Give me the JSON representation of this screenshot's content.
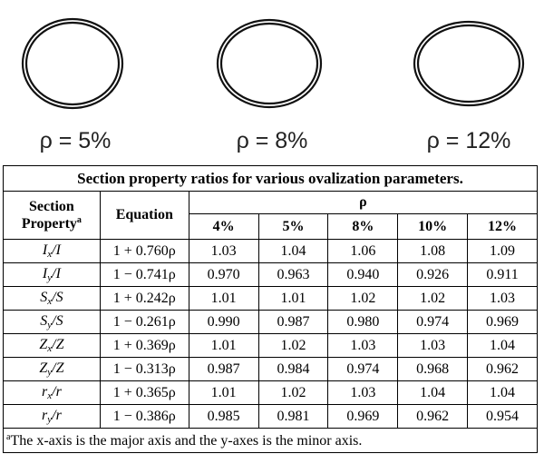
{
  "figure": {
    "ellipses": [
      {
        "label": "ρ = 5%"
      },
      {
        "label": "ρ = 8%"
      },
      {
        "label": "ρ = 12%"
      }
    ]
  },
  "table": {
    "caption": "Section property ratios for various ovalization parameters.",
    "headers": {
      "section_property": "Section",
      "section_property_line2": "Property",
      "section_property_sup": "a",
      "equation": "Equation",
      "rho": "ρ",
      "columns": [
        "4%",
        "5%",
        "8%",
        "10%",
        "12%"
      ]
    },
    "rows": [
      {
        "prop": "I",
        "sub": "x",
        "denom": "/I",
        "equation": "1 + 0.760ρ",
        "values": [
          "1.03",
          "1.04",
          "1.06",
          "1.08",
          "1.09"
        ]
      },
      {
        "prop": "I",
        "sub": "y",
        "denom": "/I",
        "equation": "1 − 0.741ρ",
        "values": [
          "0.970",
          "0.963",
          "0.940",
          "0.926",
          "0.911"
        ]
      },
      {
        "prop": "S",
        "sub": "x",
        "denom": "/S",
        "equation": "1 + 0.242ρ",
        "values": [
          "1.01",
          "1.01",
          "1.02",
          "1.02",
          "1.03"
        ]
      },
      {
        "prop": "S",
        "sub": "y",
        "denom": "/S",
        "equation": "1 − 0.261ρ",
        "values": [
          "0.990",
          "0.987",
          "0.980",
          "0.974",
          "0.969"
        ]
      },
      {
        "prop": "Z",
        "sub": "x",
        "denom": "/Z",
        "equation": "1 + 0.369ρ",
        "values": [
          "1.01",
          "1.02",
          "1.03",
          "1.03",
          "1.04"
        ]
      },
      {
        "prop": "Z",
        "sub": "y",
        "denom": "/Z",
        "equation": "1 − 0.313ρ",
        "values": [
          "0.987",
          "0.984",
          "0.974",
          "0.968",
          "0.962"
        ]
      },
      {
        "prop": "r",
        "sub": "x",
        "denom": "/r",
        "equation": "1 + 0.365ρ",
        "values": [
          "1.01",
          "1.02",
          "1.03",
          "1.04",
          "1.04"
        ]
      },
      {
        "prop": "r",
        "sub": "y",
        "denom": "/r",
        "equation": "1 − 0.386ρ",
        "values": [
          "0.985",
          "0.981",
          "0.969",
          "0.962",
          "0.954"
        ]
      }
    ],
    "footnote_mark": "a",
    "footnote": "The x-axis is the major axis and the y-axes is the minor axis."
  }
}
